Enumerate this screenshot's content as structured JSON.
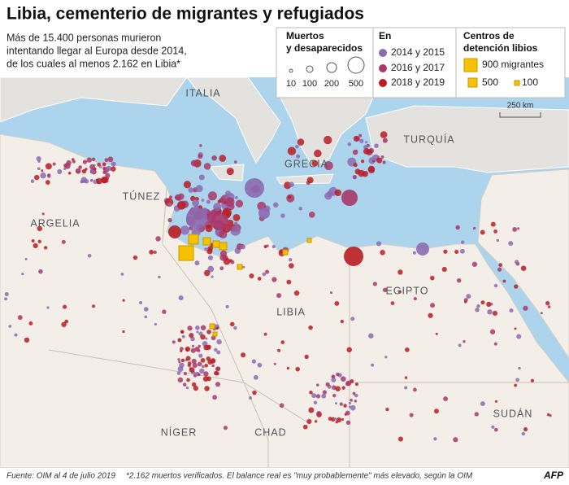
{
  "header": {
    "title": "Libia, cementerio de migrantes y refugiados",
    "subtitle": [
      "Más de 15.400 personas murieron",
      "intentando llegar al Europa desde 2014,",
      "de los cuales al menos 2.162 en Libia*"
    ]
  },
  "legend": {
    "size": {
      "title": [
        "Muertos",
        "y desaparecidos"
      ],
      "items": [
        "10",
        "100",
        "200",
        "500"
      ]
    },
    "period": {
      "title": "En",
      "items": [
        "2014 y 2015",
        "2016 y 2017",
        "2018 y 2019"
      ]
    },
    "centers": {
      "title": [
        "Centros de",
        "detención libios"
      ],
      "items": [
        "900 migrantes",
        "500",
        "100"
      ]
    }
  },
  "scale": "250 km",
  "map": {
    "labels": [
      "ITALIA",
      "TURQUÍA",
      "GRECIA",
      "TÚNEZ",
      "ARGELIA",
      "LIBIA",
      "EGIPTO",
      "NÍGER",
      "CHAD",
      "SUDÁN"
    ]
  },
  "footer": {
    "source": "Fuente: OIM al 4 de julio 2019",
    "note": "*2.162 muertos verificados. El balance real es \"muy probablemente\" más elevado, según la OIM",
    "credit": "AFP"
  }
}
